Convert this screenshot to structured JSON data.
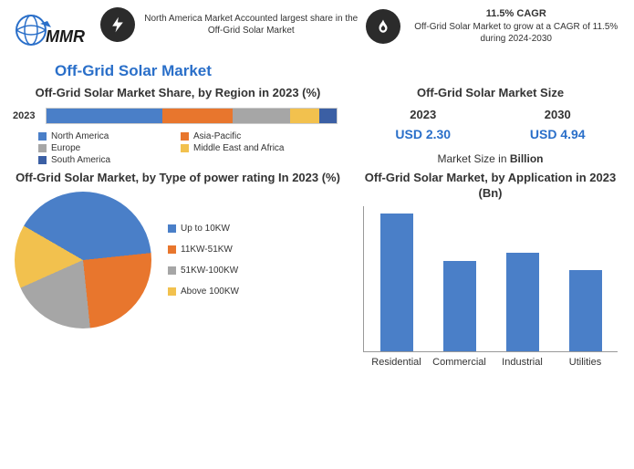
{
  "header": {
    "logo_text": "MMR",
    "fact1": {
      "text": "North America Market Accounted largest share in the Off-Grid Solar Market",
      "icon_bg": "#2b2b2b",
      "icon_fg": "#ffffff"
    },
    "fact2": {
      "head": "11.5% CAGR",
      "text": "Off-Grid Solar Market to grow at a CAGR of 11.5% during 2024-2030",
      "icon_bg": "#2b2b2b",
      "icon_fg": "#ffffff"
    }
  },
  "main_title": "Off-Grid Solar Market",
  "region_chart": {
    "title": "Off-Grid Solar Market Share, by Region in 2023 (%)",
    "type": "stacked_horizontal_bar",
    "year_label": "2023",
    "segments": [
      {
        "name": "North America",
        "value": 40,
        "color": "#4a7fc8"
      },
      {
        "name": "Asia-Pacific",
        "value": 24,
        "color": "#e8762d"
      },
      {
        "name": "Europe",
        "value": 20,
        "color": "#a6a6a6"
      },
      {
        "name": "Middle East and Africa",
        "value": 10,
        "color": "#f2c14e"
      },
      {
        "name": "South America",
        "value": 6,
        "color": "#3b5fa4"
      }
    ]
  },
  "market_size": {
    "title": "Off-Grid Solar Market Size",
    "year1": "2023",
    "year2": "2030",
    "val1": "USD 2.30",
    "val2": "USD 4.94",
    "caption_prefix": "Market Size in ",
    "caption_bold": "Billion",
    "val_color": "#2a6fc9"
  },
  "power_chart": {
    "title": "Off-Grid Solar Market, by Type of power rating In 2023 (%)",
    "type": "pie",
    "slices": [
      {
        "name": "Up to 10KW",
        "value": 40,
        "color": "#4a7fc8"
      },
      {
        "name": "11KW-51KW",
        "value": 25,
        "color": "#e8762d"
      },
      {
        "name": "51KW-100KW",
        "value": 20,
        "color": "#a6a6a6"
      },
      {
        "name": "Above 100KW",
        "value": 15,
        "color": "#f2c14e"
      }
    ]
  },
  "app_chart": {
    "title": "Off-Grid Solar Market, by Application in 2023 (Bn)",
    "type": "bar",
    "ymax": 1.0,
    "bar_color": "#4a7fc8",
    "bars": [
      {
        "label": "Residential",
        "value": 0.95
      },
      {
        "label": "Commercial",
        "value": 0.62
      },
      {
        "label": "Industrial",
        "value": 0.68
      },
      {
        "label": "Utilities",
        "value": 0.56
      }
    ]
  }
}
